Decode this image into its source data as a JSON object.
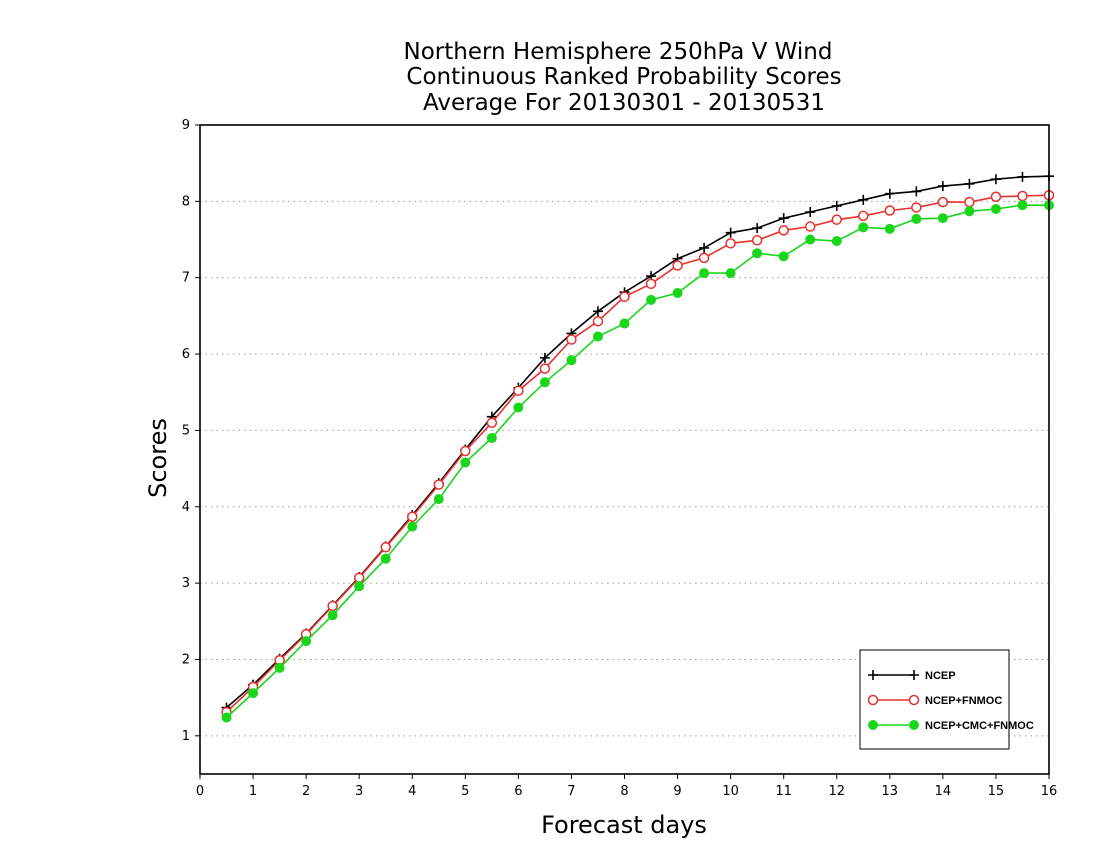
{
  "chart_data": {
    "type": "line",
    "title": [
      "Northern Hemisphere 250hPa V Wind",
      "Continuous Ranked Probability Scores",
      "Average For 20130301 - 20130531"
    ],
    "xlabel": "Forecast days",
    "ylabel": "Scores",
    "xlim": [
      0,
      16
    ],
    "ylim": [
      0.5,
      9
    ],
    "x_ticks": [
      0,
      1,
      2,
      3,
      4,
      5,
      6,
      7,
      8,
      9,
      10,
      11,
      12,
      13,
      14,
      15,
      16
    ],
    "y_ticks": [
      1,
      2,
      3,
      4,
      5,
      6,
      7,
      8,
      9
    ],
    "grid": "horizontal dotted",
    "legend_position": "bottom-right",
    "x": [
      0.5,
      1,
      1.5,
      2,
      2.5,
      3,
      3.5,
      4,
      4.5,
      5,
      5.5,
      6,
      6.5,
      7,
      7.5,
      8,
      8.5,
      9,
      9.5,
      10,
      10.5,
      11,
      11.5,
      12,
      12.5,
      13,
      13.5,
      14,
      14.5,
      15,
      15.5,
      16
    ],
    "series": [
      {
        "name": "NCEP",
        "color": "#000000",
        "marker": "plus",
        "values": [
          1.37,
          1.67,
          2.01,
          2.34,
          2.71,
          3.08,
          3.48,
          3.89,
          4.31,
          4.75,
          5.18,
          5.56,
          5.95,
          6.27,
          6.56,
          6.81,
          7.02,
          7.25,
          7.39,
          7.59,
          7.65,
          7.78,
          7.86,
          7.94,
          8.02,
          8.1,
          8.13,
          8.2,
          8.23,
          8.29,
          8.32,
          8.33
        ]
      },
      {
        "name": "NCEP+FNMOC",
        "color": "#e8302c",
        "marker": "open-circle",
        "values": [
          1.31,
          1.64,
          1.99,
          2.33,
          2.7,
          3.07,
          3.47,
          3.87,
          4.29,
          4.73,
          5.1,
          5.52,
          5.81,
          6.19,
          6.43,
          6.75,
          6.92,
          7.16,
          7.26,
          7.45,
          7.49,
          7.62,
          7.67,
          7.76,
          7.81,
          7.88,
          7.92,
          7.99,
          7.99,
          8.06,
          8.07,
          8.08
        ]
      },
      {
        "name": "NCEP+CMC+FNMOC",
        "color": "#1ad61a",
        "marker": "filled-circle",
        "values": [
          1.24,
          1.56,
          1.89,
          2.24,
          2.58,
          2.96,
          3.32,
          3.74,
          4.1,
          4.58,
          4.9,
          5.3,
          5.63,
          5.92,
          6.23,
          6.4,
          6.71,
          6.8,
          7.06,
          7.06,
          7.32,
          7.28,
          7.5,
          7.48,
          7.66,
          7.64,
          7.77,
          7.78,
          7.87,
          7.9,
          7.95,
          7.95
        ]
      }
    ]
  }
}
